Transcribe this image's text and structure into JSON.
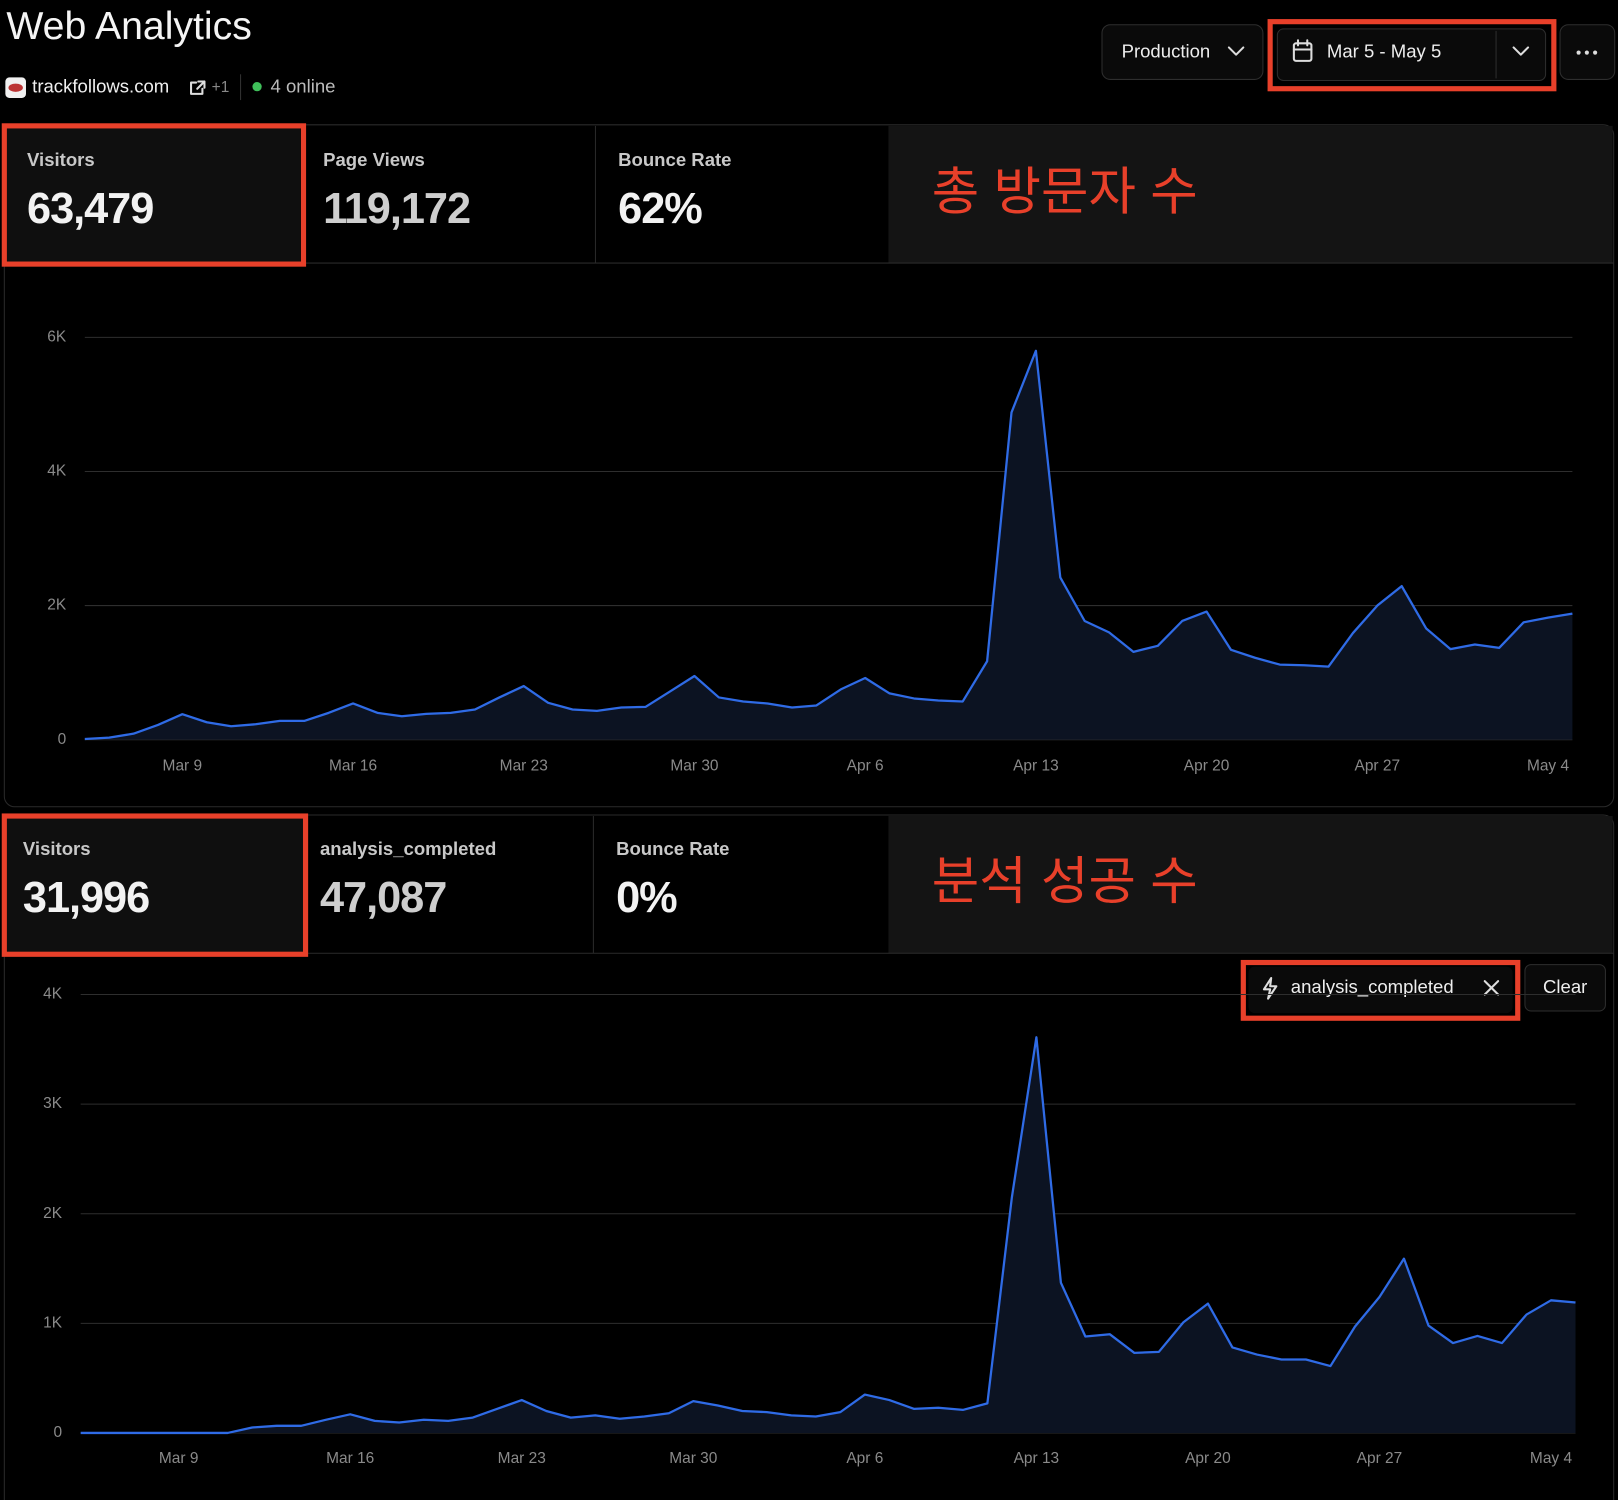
{
  "header": {
    "title": "Web Analytics",
    "site": "trackfollows.com",
    "site_extra": "+1",
    "online": "4 online",
    "environment": "Production",
    "date_range": "Mar 5 - May 5"
  },
  "panels": [
    {
      "stats": [
        {
          "label": "Visitors",
          "value": "63,479"
        },
        {
          "label": "Page Views",
          "value": "119,172"
        },
        {
          "label": "Bounce Rate",
          "value": "62%"
        }
      ],
      "annotation": "총 방문자 수"
    },
    {
      "stats": [
        {
          "label": "Visitors",
          "value": "31,996"
        },
        {
          "label": "analysis_completed",
          "value": "47,087"
        },
        {
          "label": "Bounce Rate",
          "value": "0%"
        }
      ],
      "annotation": "분석 성공 수",
      "filter": "analysis_completed",
      "clear": "Clear"
    }
  ],
  "chart_data": [
    {
      "type": "area",
      "color": "#2f6be6",
      "fill": "#0c1322",
      "grid": true,
      "categories": [
        null,
        null,
        null,
        null,
        "Mar 9",
        null,
        null,
        null,
        null,
        null,
        null,
        "Mar 16",
        null,
        null,
        null,
        null,
        null,
        null,
        "Mar 23",
        null,
        null,
        null,
        null,
        null,
        null,
        "Mar 30",
        null,
        null,
        null,
        null,
        null,
        null,
        "Apr 6",
        null,
        null,
        null,
        null,
        null,
        null,
        "Apr 13",
        null,
        null,
        null,
        null,
        null,
        null,
        "Apr 20",
        null,
        null,
        null,
        null,
        null,
        null,
        "Apr 27",
        null,
        null,
        null,
        null,
        null,
        null,
        "May 4",
        null
      ],
      "values": [
        10,
        30,
        90,
        220,
        380,
        260,
        200,
        230,
        280,
        280,
        400,
        540,
        400,
        350,
        385,
        400,
        450,
        630,
        800,
        550,
        450,
        430,
        480,
        490,
        720,
        950,
        630,
        570,
        540,
        480,
        510,
        750,
        920,
        690,
        615,
        585,
        570,
        1170,
        4880,
        5800,
        2420,
        1770,
        1600,
        1310,
        1400,
        1770,
        1910,
        1340,
        1220,
        1120,
        1110,
        1090,
        1590,
        2000,
        2290,
        1660,
        1350,
        1420,
        1370,
        1750,
        1820,
        1880
      ],
      "ylim": [
        0,
        6000
      ],
      "yticks": [
        0,
        {
          "value": 2000,
          "label": "2K"
        },
        {
          "value": 4000,
          "label": "4K"
        },
        {
          "value": 6000,
          "label": "6K"
        }
      ]
    },
    {
      "type": "area",
      "color": "#2f6be6",
      "fill": "#0c1322",
      "grid": true,
      "categories": [
        null,
        null,
        null,
        null,
        "Mar 9",
        null,
        null,
        null,
        null,
        null,
        null,
        "Mar 16",
        null,
        null,
        null,
        null,
        null,
        null,
        "Mar 23",
        null,
        null,
        null,
        null,
        null,
        null,
        "Mar 30",
        null,
        null,
        null,
        null,
        null,
        null,
        "Apr 6",
        null,
        null,
        null,
        null,
        null,
        null,
        "Apr 13",
        null,
        null,
        null,
        null,
        null,
        null,
        "Apr 20",
        null,
        null,
        null,
        null,
        null,
        null,
        "Apr 27",
        null,
        null,
        null,
        null,
        null,
        null,
        "May 4",
        null
      ],
      "values": [
        0,
        0,
        0,
        0,
        0,
        0,
        0,
        50,
        65,
        65,
        120,
        170,
        110,
        95,
        120,
        110,
        140,
        220,
        300,
        200,
        140,
        160,
        130,
        150,
        180,
        290,
        250,
        200,
        190,
        160,
        150,
        190,
        350,
        300,
        220,
        230,
        210,
        270,
        2150,
        3610,
        1370,
        880,
        900,
        730,
        740,
        1010,
        1180,
        780,
        715,
        670,
        670,
        610,
        970,
        1240,
        1590,
        980,
        820,
        885,
        820,
        1080,
        1210,
        1190
      ],
      "ylim": [
        0,
        4000
      ],
      "yticks": [
        0,
        {
          "value": 1000,
          "label": "1K"
        },
        {
          "value": 2000,
          "label": "2K"
        },
        {
          "value": 3000,
          "label": "3K"
        },
        {
          "value": 4000,
          "label": "4K"
        }
      ]
    }
  ]
}
